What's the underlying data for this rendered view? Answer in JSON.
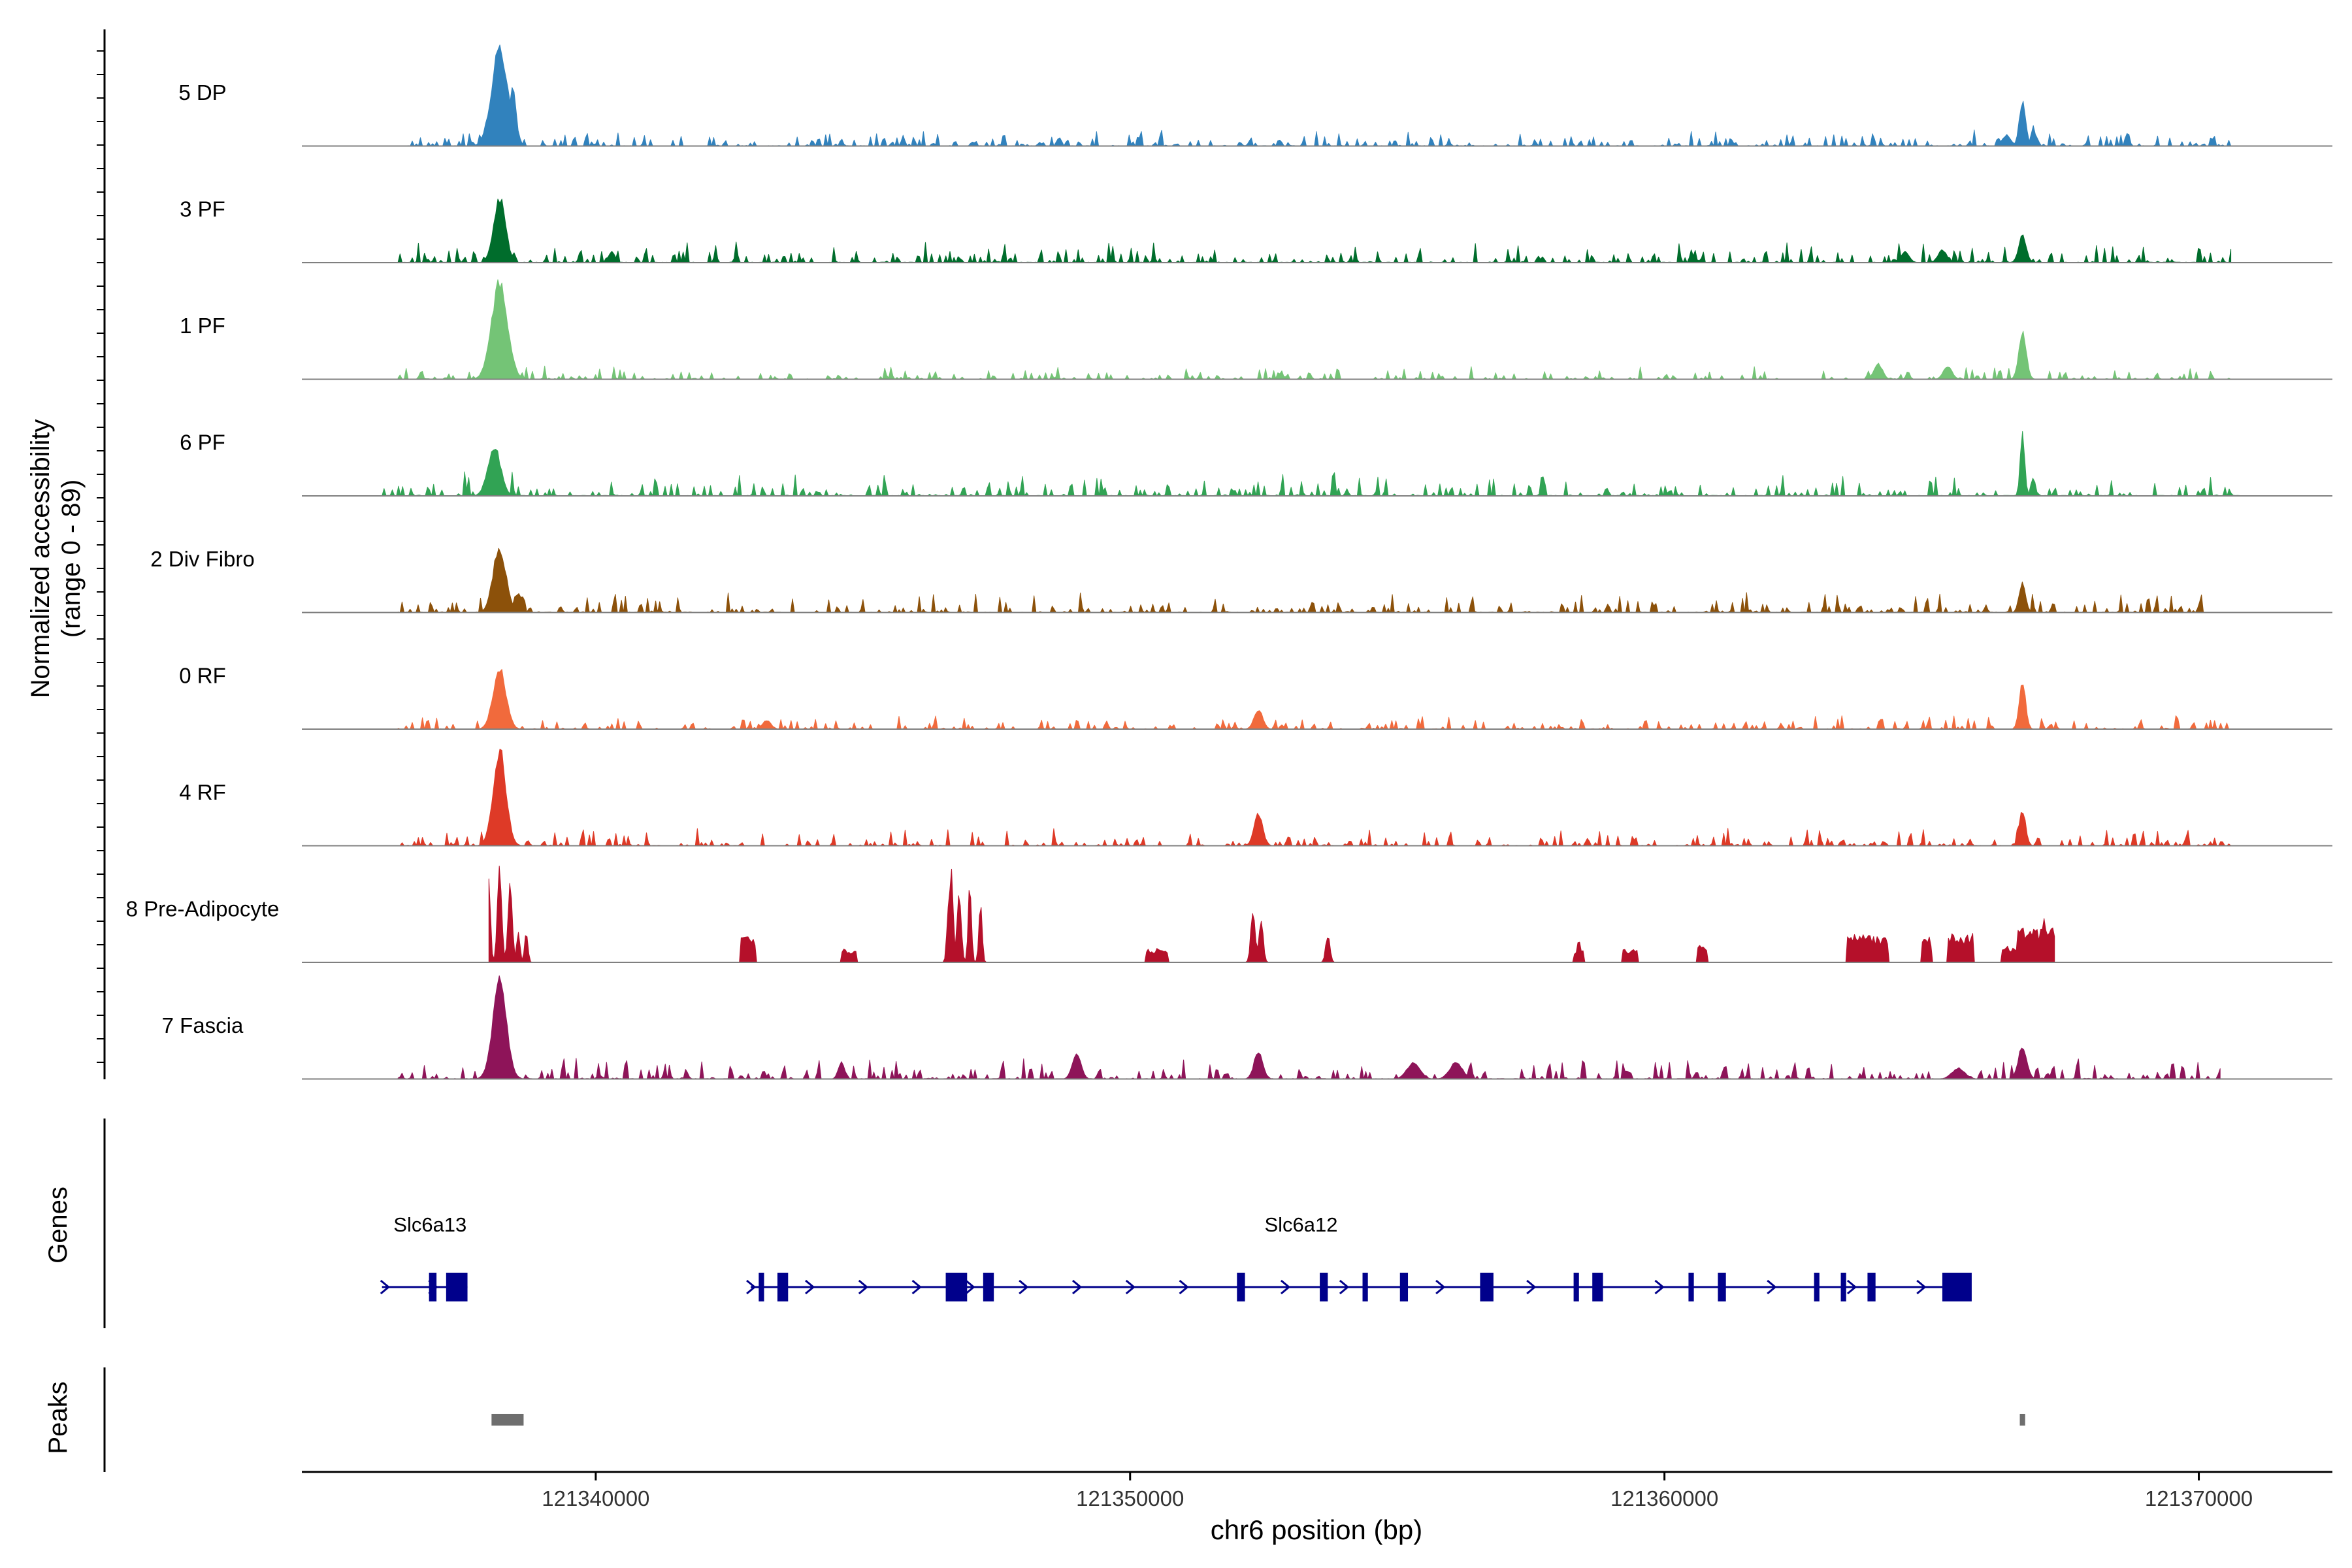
{
  "chart_data": {
    "type": "genome-coverage",
    "title": "",
    "xlabel": "chr6 position (bp)",
    "ylabel_line1": "Normalized accessibility",
    "ylabel_line2": "(range 0 - 89)",
    "yrange": [
      0,
      89
    ],
    "xlim": [
      121334500,
      121372500
    ],
    "xticks": [
      121340000,
      121350000,
      121360000,
      121370000
    ],
    "xtick_labels": [
      "121340000",
      "121350000",
      "121360000",
      "121370000"
    ],
    "colors": {
      "axis": "#000000",
      "baseline": "#7f7f7f",
      "gene": "#00008b",
      "peak": "#6e6e6e"
    },
    "tracks": [
      {
        "name": "5 DP",
        "color": "#3182bd",
        "range": [
          121336300,
          121370600
        ],
        "peaks": [
          [
            121338200,
            89,
            150
          ],
          [
            121338450,
            55,
            60
          ],
          [
            121366700,
            40,
            60
          ],
          [
            121366900,
            18,
            40
          ],
          [
            121366400,
            10,
            80
          ]
        ],
        "noise": [
          [
            121336300,
            121370600,
            7
          ]
        ]
      },
      {
        "name": "3 PF",
        "color": "#006d2c",
        "range": [
          121336300,
          121370600
        ],
        "peaks": [
          [
            121338200,
            60,
            110
          ],
          [
            121366700,
            25,
            70
          ],
          [
            121340300,
            10,
            60
          ],
          [
            121365200,
            12,
            80
          ],
          [
            121364500,
            10,
            80
          ]
        ],
        "noise": [
          [
            121336300,
            121370600,
            9
          ]
        ]
      },
      {
        "name": "1 PF",
        "color": "#74c476",
        "range": [
          121336300,
          121370600
        ],
        "peaks": [
          [
            121338200,
            89,
            150
          ],
          [
            121366700,
            42,
            70
          ],
          [
            121364000,
            14,
            80
          ],
          [
            121365300,
            12,
            80
          ]
        ],
        "noise": [
          [
            121336300,
            121370600,
            6
          ]
        ]
      },
      {
        "name": "6 PF",
        "color": "#31a354",
        "range": [
          121336000,
          121370800
        ],
        "peaks": [
          [
            121338100,
            45,
            120
          ],
          [
            121366700,
            60,
            40
          ],
          [
            121366900,
            18,
            40
          ]
        ],
        "noise": [
          [
            121336000,
            121370800,
            10
          ]
        ]
      },
      {
        "name": "2 Div Fibro",
        "color": "#8c510a",
        "range": [
          121336300,
          121370200
        ],
        "peaks": [
          [
            121338200,
            60,
            120
          ],
          [
            121366700,
            28,
            60
          ],
          [
            121338550,
            18,
            60
          ]
        ],
        "noise": [
          [
            121336300,
            121370200,
            8
          ]
        ]
      },
      {
        "name": "0 RF",
        "color": "#f16a3c",
        "range": [
          121336300,
          121370600
        ],
        "peaks": [
          [
            121338200,
            55,
            120
          ],
          [
            121352400,
            18,
            80
          ],
          [
            121366700,
            42,
            60
          ],
          [
            121343200,
            8,
            80
          ]
        ],
        "noise": [
          [
            121336300,
            121370600,
            6
          ]
        ]
      },
      {
        "name": "4 RF",
        "color": "#de3a27",
        "range": [
          121336300,
          121370600
        ],
        "peaks": [
          [
            121338200,
            89,
            120
          ],
          [
            121352400,
            30,
            80
          ],
          [
            121366700,
            32,
            60
          ]
        ],
        "noise": [
          [
            121336300,
            121370600,
            7
          ]
        ]
      },
      {
        "name": "8 Pre-Adipocyte",
        "color": "#b5102a",
        "range": [
          121338000,
          121367300
        ],
        "peaks": [
          [
            121338000,
            80,
            30
          ],
          [
            121338200,
            89,
            40
          ],
          [
            121338400,
            70,
            40
          ],
          [
            121338550,
            30,
            30
          ],
          [
            121338700,
            28,
            30
          ],
          [
            121346650,
            85,
            40
          ],
          [
            121346800,
            60,
            40
          ],
          [
            121346600,
            50,
            30
          ],
          [
            121347000,
            70,
            30
          ],
          [
            121347200,
            55,
            30
          ],
          [
            121352300,
            50,
            40
          ],
          [
            121352450,
            40,
            40
          ],
          [
            121353700,
            25,
            40
          ],
          [
            121358400,
            20,
            40
          ],
          [
            121366700,
            35,
            40
          ],
          [
            121366900,
            30,
            40
          ],
          [
            121367100,
            40,
            40
          ]
        ],
        "blocks": [
          [
            121342700,
            121343000,
            22
          ],
          [
            121344600,
            121344900,
            12
          ],
          [
            121350300,
            121350700,
            12
          ],
          [
            121358300,
            121358500,
            10
          ],
          [
            121359200,
            121359500,
            12
          ],
          [
            121360600,
            121360800,
            16
          ],
          [
            121363400,
            121364200,
            24
          ],
          [
            121364800,
            121365000,
            22
          ],
          [
            121365300,
            121365800,
            26
          ],
          [
            121366300,
            121366600,
            14
          ],
          [
            121366600,
            121367300,
            30
          ]
        ],
        "noise": []
      },
      {
        "name": "7 Fascia",
        "color": "#8e1459",
        "range": [
          121336300,
          121370400
        ],
        "peaks": [
          [
            121338200,
            89,
            130
          ],
          [
            121349000,
            25,
            80
          ],
          [
            121352400,
            25,
            80
          ],
          [
            121366700,
            30,
            80
          ],
          [
            121355300,
            15,
            120
          ],
          [
            121356100,
            15,
            120
          ],
          [
            121365500,
            10,
            120
          ],
          [
            121344600,
            15,
            60
          ]
        ],
        "noise": [
          [
            121336300,
            121370400,
            9
          ]
        ]
      }
    ],
    "genes_label": "Genes",
    "peaks_label": "Peaks",
    "genes": [
      {
        "name": "Slc6a13",
        "start": 121336000,
        "end": 121337600,
        "label_pos": 121336900,
        "exons": [
          [
            121336880,
            121337020
          ],
          [
            121337200,
            121337600
          ]
        ],
        "arrows": [
          121336050,
          121336950
        ]
      },
      {
        "name": "Slc6a12",
        "start": 121342900,
        "end": 121365700,
        "label_pos": 121353200,
        "exons": [
          [
            121343050,
            121343150
          ],
          [
            121343400,
            121343600
          ],
          [
            121346550,
            121346950
          ],
          [
            121347250,
            121347450
          ],
          [
            121352000,
            121352150
          ],
          [
            121353550,
            121353700
          ],
          [
            121354350,
            121354450
          ],
          [
            121355050,
            121355200
          ],
          [
            121356550,
            121356800
          ],
          [
            121358300,
            121358400
          ],
          [
            121358650,
            121358850
          ],
          [
            121360450,
            121360550
          ],
          [
            121361000,
            121361150
          ],
          [
            121362800,
            121362900
          ],
          [
            121363300,
            121363400
          ],
          [
            121363800,
            121363950
          ],
          [
            121365200,
            121365750
          ]
        ],
        "arrows": [
          121342900,
          121344000,
          121345000,
          121346000,
          121347000,
          121348000,
          121349000,
          121350000,
          121351000,
          121352900,
          121354000,
          121355800,
          121357500,
          121359900,
          121362000,
          121363500,
          121364800
        ]
      }
    ],
    "peak_regions": [
      [
        121338050,
        121338650
      ],
      [
        121366650,
        121366750
      ]
    ]
  }
}
